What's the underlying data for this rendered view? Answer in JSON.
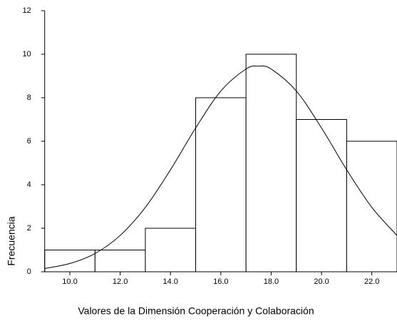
{
  "chart_data": {
    "type": "histogram",
    "xlabel": "Valores de la Dimensión Cooperación y Colaboración",
    "ylabel": "Frecuencia",
    "bins": [
      9,
      11,
      13,
      15,
      17,
      19,
      21,
      23
    ],
    "values": [
      1,
      1,
      2,
      8,
      10,
      7,
      6
    ],
    "color": "#ffffff",
    "xlim": [
      9,
      23
    ],
    "xticks": [
      {
        "value": 10,
        "label": "10.0"
      },
      {
        "value": 12,
        "label": "12.0"
      },
      {
        "value": 14,
        "label": "14.0"
      },
      {
        "value": 16,
        "label": "16.0"
      },
      {
        "value": 18,
        "label": "18.0"
      },
      {
        "value": 20,
        "label": "20.0"
      },
      {
        "value": 22,
        "label": "22.0"
      }
    ],
    "ylim": [
      0,
      12
    ],
    "yticks": [
      0,
      2,
      4,
      6,
      8,
      10,
      12
    ],
    "curve": {
      "x": [
        9,
        10,
        11,
        12,
        13,
        14,
        15,
        16,
        17,
        17.5,
        18,
        19,
        20,
        21,
        22,
        23
      ],
      "values": [
        0.15,
        0.38,
        0.84,
        1.67,
        2.96,
        4.69,
        6.61,
        8.31,
        9.32,
        9.45,
        9.32,
        8.31,
        6.61,
        4.69,
        2.96,
        1.67
      ]
    }
  }
}
